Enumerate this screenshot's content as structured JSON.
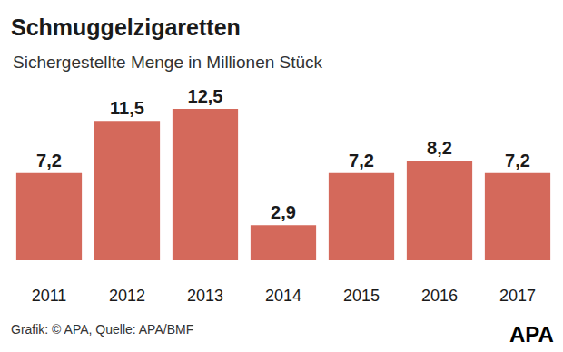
{
  "chart_data": {
    "type": "bar",
    "title": "Schmuggelzigaretten",
    "subtitle": "Sichergestellte Menge in Millionen Stück",
    "categories": [
      "2011",
      "2012",
      "2013",
      "2014",
      "2015",
      "2016",
      "2017"
    ],
    "values": [
      7.2,
      11.5,
      12.5,
      2.9,
      7.2,
      8.2,
      7.2
    ],
    "value_labels": [
      "7,2",
      "11,5",
      "12,5",
      "2,9",
      "7,2",
      "8,2",
      "7,2"
    ],
    "color": "#d4695b",
    "ylim": [
      0,
      12.5
    ],
    "grid": false,
    "data_labels": true,
    "tick_labels": "x",
    "annotations": [
      "Grafik: © APA, Quelle: APA/BMF",
      "APA"
    ]
  }
}
